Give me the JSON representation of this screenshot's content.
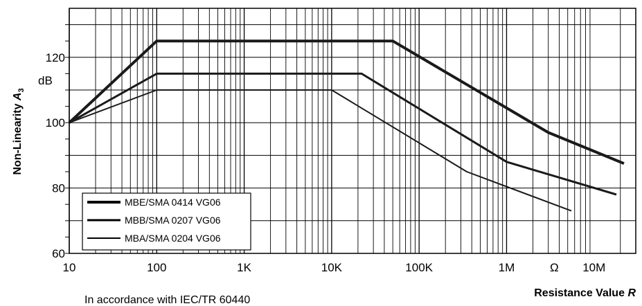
{
  "chart_data": {
    "type": "line",
    "x_scale": "log",
    "xlim": [
      10,
      30000000
    ],
    "ylim": [
      60,
      135
    ],
    "x_ticks": [
      10,
      100,
      1000,
      10000,
      100000,
      1000000,
      10000000
    ],
    "x_tick_labels": [
      "10",
      "100",
      "1K",
      "10K",
      "100K",
      "1M",
      "10M"
    ],
    "y_ticks": [
      60,
      80,
      100,
      120
    ],
    "y_tick_labels": [
      "60",
      "80",
      "100",
      "120"
    ],
    "y_unit": "dB",
    "x_unit": "Ω",
    "ylabel": "Non-Linearity",
    "ylabel_symbol": "A",
    "ylabel_subscript": "3",
    "xlabel": "Resistance Value",
    "xlabel_symbol": "R",
    "note": "In accordance with IEC/TR 60440",
    "grid": true,
    "legend_position": "bottom-left",
    "series": [
      {
        "name": "MBE/SMA 0414 VG06",
        "stroke": 4,
        "x": [
          10,
          100,
          50000,
          3000000,
          22000000
        ],
        "y": [
          100,
          125,
          125,
          97,
          87.5
        ]
      },
      {
        "name": "MBB/SMA 0207 VG06",
        "stroke": 3,
        "x": [
          10,
          100,
          22000,
          1000000,
          18000000
        ],
        "y": [
          100,
          115,
          115,
          88,
          78
        ]
      },
      {
        "name": "MBA/SMA 0204 VG06",
        "stroke": 2,
        "x": [
          10,
          100,
          10000,
          350000,
          5500000
        ],
        "y": [
          100,
          110,
          110,
          85,
          73
        ]
      }
    ]
  }
}
